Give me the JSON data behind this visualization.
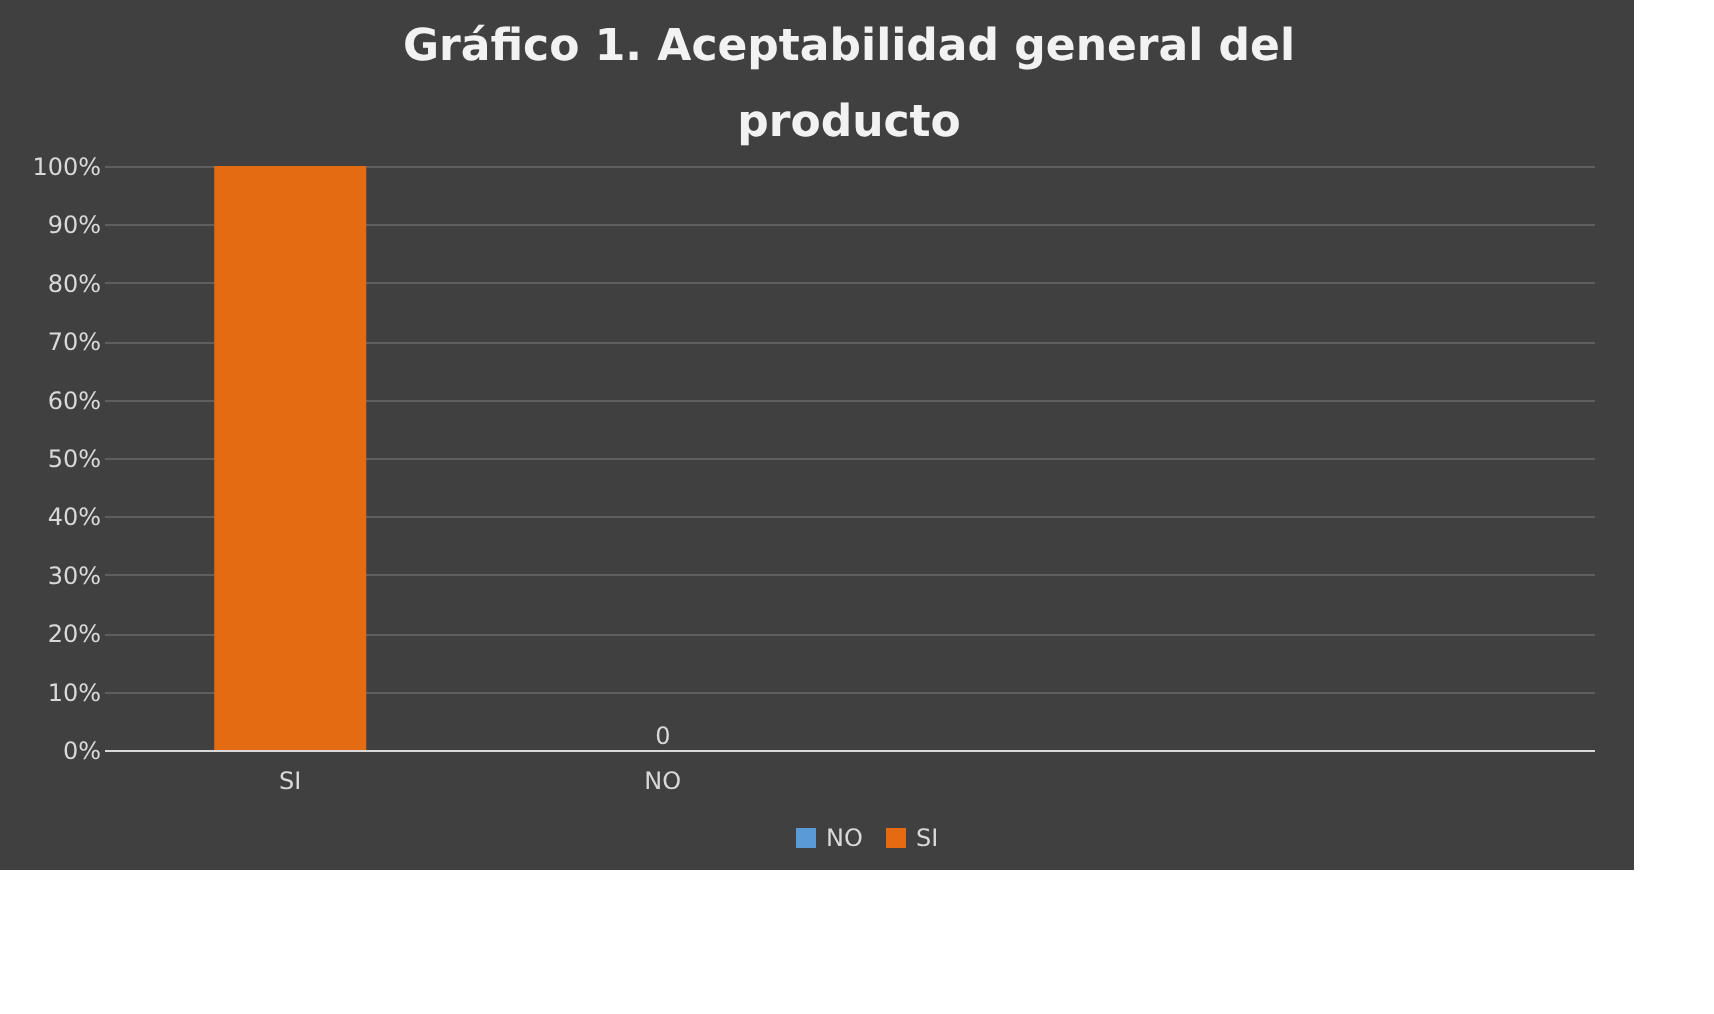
{
  "chart_data": {
    "type": "bar",
    "title": "Gráfico 1. Aceptabilidad general del producto",
    "categories": [
      "SI",
      "NO",
      null,
      null
    ],
    "series": [
      {
        "name": "NO",
        "color": "#5b9bd5",
        "values": [
          null,
          0,
          null,
          null
        ],
        "value_labels": [
          null,
          "0",
          null,
          null
        ]
      },
      {
        "name": "SI",
        "color": "#e36c12",
        "values": [
          100,
          null,
          null,
          null
        ]
      }
    ],
    "ylim": [
      0,
      100
    ],
    "yticks": [
      {
        "value": 0,
        "label": "0%"
      },
      {
        "value": 10,
        "label": "10%"
      },
      {
        "value": 20,
        "label": "20%"
      },
      {
        "value": 30,
        "label": "30%"
      },
      {
        "value": 40,
        "label": "40%"
      },
      {
        "value": 50,
        "label": "50%"
      },
      {
        "value": 60,
        "label": "60%"
      },
      {
        "value": 70,
        "label": "70%"
      },
      {
        "value": 80,
        "label": "80%"
      },
      {
        "value": 90,
        "label": "90%"
      },
      {
        "value": 100,
        "label": "100%"
      }
    ],
    "grid": "y",
    "legend": "bottom"
  }
}
